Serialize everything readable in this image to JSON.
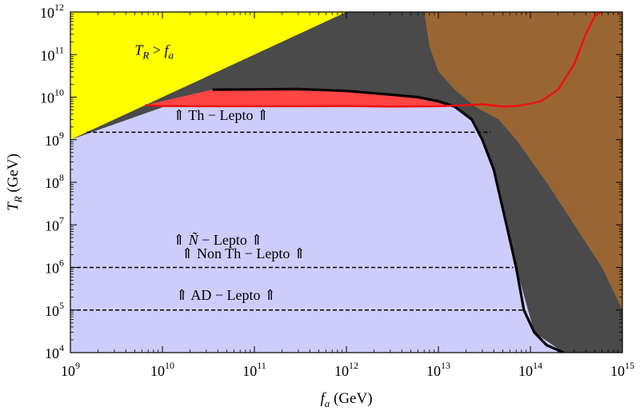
{
  "chart_data": {
    "type": "area",
    "x_scale": "log",
    "y_scale": "log",
    "xlim": [
      1000000000.0,
      1000000000000000.0
    ],
    "ylim": [
      10000.0,
      1000000000000.0
    ],
    "xlabel": {
      "italic": "f",
      "sub": "a",
      "unit": " (GeV)"
    },
    "ylabel": {
      "italic": "T",
      "sub": "R",
      "unit": " (GeV)"
    },
    "xticks": [
      {
        "value": 1000000000.0,
        "base": "10",
        "exp": "9"
      },
      {
        "value": 10000000000.0,
        "base": "10",
        "exp": "10"
      },
      {
        "value": 100000000000.0,
        "base": "10",
        "exp": "11"
      },
      {
        "value": 1000000000000.0,
        "base": "10",
        "exp": "12"
      },
      {
        "value": 10000000000000.0,
        "base": "10",
        "exp": "13"
      },
      {
        "value": 100000000000000.0,
        "base": "10",
        "exp": "14"
      },
      {
        "value": 1000000000000000.0,
        "base": "10",
        "exp": "15"
      }
    ],
    "yticks": [
      {
        "value": 10000.0,
        "base": "10",
        "exp": "4"
      },
      {
        "value": 100000.0,
        "base": "10",
        "exp": "5"
      },
      {
        "value": 1000000.0,
        "base": "10",
        "exp": "6"
      },
      {
        "value": 10000000.0,
        "base": "10",
        "exp": "7"
      },
      {
        "value": 100000000.0,
        "base": "10",
        "exp": "8"
      },
      {
        "value": 1000000000.0,
        "base": "10",
        "exp": "9"
      },
      {
        "value": 10000000000.0,
        "base": "10",
        "exp": "10"
      },
      {
        "value": 100000000000.0,
        "base": "10",
        "exp": "11"
      },
      {
        "value": 1000000000000.0,
        "base": "10",
        "exp": "12"
      }
    ],
    "colors": {
      "background": "#cdcdfb",
      "dark_region": "#4a4a4a",
      "yellow_region": "#ffff00",
      "brown_region": "#996633",
      "red_region": "#ff4444",
      "red_line": "#ee1111",
      "black_line": "#000000"
    },
    "regions": {
      "dark": {
        "name": "",
        "points": [
          [
            1000000000.0,
            1000000000000.0
          ],
          [
            1000000000000000.0,
            1000000000000.0
          ],
          [
            1000000000000000.0,
            10000.0
          ],
          [
            230000000000000.0,
            10000.0
          ],
          [
            110000000000000.0,
            30000.0
          ],
          [
            70000000000000.0,
            1000000.0
          ],
          [
            55000000000000.0,
            10000000.0
          ],
          [
            40000000000000.0,
            200000000.0
          ],
          [
            30000000000000.0,
            1000000000.0
          ],
          [
            23000000000000.0,
            3000000000.0
          ],
          [
            15000000000000.0,
            6000000000.0
          ],
          [
            6000000000000.0,
            10000000000.0
          ],
          [
            1000000000000.0,
            13500000000.0
          ],
          [
            35000000000.0,
            15000000000.0
          ],
          [
            1000000000.0,
            1000000000.0
          ]
        ]
      },
      "brown": {
        "name": "",
        "points": [
          [
            7000000000000.0,
            1000000000000.0
          ],
          [
            1000000000000000.0,
            1000000000000.0
          ],
          [
            1000000000000000.0,
            100000.0
          ],
          [
            600000000000000.0,
            1000000.0
          ],
          [
            300000000000000.0,
            10000000.0
          ],
          [
            150000000000000.0,
            100000000.0
          ],
          [
            70000000000000.0,
            1000000000.0
          ],
          [
            45000000000000.0,
            3000000000.0
          ],
          [
            25000000000000.0,
            6000000000.0
          ],
          [
            15000000000000.0,
            15000000000.0
          ],
          [
            10000000000000.0,
            40000000000.0
          ],
          [
            8000000000000.0,
            150000000000.0
          ],
          [
            7000000000000.0,
            1000000000000.0
          ]
        ]
      },
      "yellow": {
        "name": "",
        "points": [
          [
            1000000000.0,
            1000000000.0
          ],
          [
            1000000000000.0,
            1000000000000.0
          ],
          [
            1000000000.0,
            1000000000000.0
          ]
        ]
      },
      "red": {
        "name": "",
        "points": [
          [
            6500000000.0,
            6500000000.0
          ],
          [
            35000000000.0,
            15000000000.0
          ],
          [
            100000000000.0,
            15200000000.0
          ],
          [
            1000000000000.0,
            13500000000.0
          ],
          [
            6000000000000.0,
            10000000000.0
          ],
          [
            15000000000000.0,
            6000000000.0
          ],
          [
            10000000000000.0,
            6200000000.0
          ],
          [
            3000000000000.0,
            6000000000.0
          ],
          [
            1000000000000.0,
            6200000000.0
          ],
          [
            100000000000.0,
            6100000000.0
          ],
          [
            10000000000.0,
            6200000000.0
          ],
          [
            6500000000.0,
            6500000000.0
          ]
        ]
      }
    },
    "series": [
      {
        "name": "",
        "kind": "black_boundary",
        "points": [
          [
            35000000000.0,
            15000000000.0
          ],
          [
            100000000000.0,
            15200000000.0
          ],
          [
            300000000000.0,
            15500000000.0
          ],
          [
            1000000000000.0,
            14000000000.0
          ],
          [
            3000000000000.0,
            11500000000.0
          ],
          [
            6000000000000.0,
            10000000000.0
          ],
          [
            10000000000000.0,
            8000000000.0
          ],
          [
            15000000000000.0,
            6000000000.0
          ],
          [
            23000000000000.0,
            3000000000.0
          ],
          [
            30000000000000.0,
            1000000000.0
          ],
          [
            40000000000000.0,
            200000000.0
          ],
          [
            55000000000000.0,
            10000000.0
          ],
          [
            70000000000000.0,
            1000000.0
          ],
          [
            85000000000000.0,
            100000.0
          ],
          [
            110000000000000.0,
            30000.0
          ],
          [
            150000000000000.0,
            15000.0
          ],
          [
            230000000000000.0,
            10000.0
          ]
        ]
      },
      {
        "name": "",
        "kind": "red_line",
        "points": [
          [
            6500000000.0,
            6500000000.0
          ],
          [
            10000000000.0,
            6200000000.0
          ],
          [
            30000000000.0,
            6100000000.0
          ],
          [
            100000000000.0,
            6100000000.0
          ],
          [
            300000000000.0,
            6100000000.0
          ],
          [
            1000000000000.0,
            6200000000.0
          ],
          [
            3000000000000.0,
            6000000000.0
          ],
          [
            10000000000000.0,
            6100000000.0
          ],
          [
            20000000000000.0,
            6500000000.0
          ],
          [
            30000000000000.0,
            6800000000.0
          ],
          [
            50000000000000.0,
            6000000000.0
          ],
          [
            70000000000000.0,
            6200000000.0
          ],
          [
            100000000000000.0,
            7000000000.0
          ],
          [
            130000000000000.0,
            8000000000.0
          ],
          [
            200000000000000.0,
            15000000000.0
          ],
          [
            300000000000000.0,
            60000000000.0
          ],
          [
            400000000000000.0,
            300000000000.0
          ],
          [
            500000000000000.0,
            800000000000.0
          ],
          [
            600000000000000.0,
            1050000000000.0
          ]
        ]
      }
    ],
    "dashed_lines": [
      {
        "y": 1500000000.0,
        "x_from": 1500000000.0,
        "x_to": 37000000000000.0
      },
      {
        "y": 1000000.0,
        "x_from": 1000000000.0,
        "x_to": 65000000000000.0
      },
      {
        "y": 100000.0,
        "x_from": 1000000000.0,
        "x_to": 83000000000000.0
      }
    ],
    "annotations": [
      {
        "id": "yellow-label",
        "text": "T_R > f_a",
        "parts": {
          "t": "T",
          "sub_r": "R",
          "rel": " > ",
          "f": "f",
          "sub_a": "a"
        },
        "x": 5000000000.0,
        "y": 100000000000.0
      },
      {
        "id": "th-lepto",
        "text": "⇑ Th − Lepto ⇑",
        "x": 13000000000.0,
        "y": 2900000000.0
      },
      {
        "id": "ntilde-lepto",
        "text": "⇑ Ñ − Lepto ⇑",
        "parts": {
          "arrow_l": "⇑ ",
          "n": "Ñ",
          "rest": " − Lepto ⇑"
        },
        "x": 13000000000.0,
        "y": 3400000.0
      },
      {
        "id": "nonth-lepto",
        "text": "⇑ Non Th − Lepto ⇑",
        "x": 16000000000.0,
        "y": 1650000.0
      },
      {
        "id": "ad-lepto",
        "text": "⇑ AD − Lepto ⇑",
        "x": 14000000000.0,
        "y": 175000.0
      }
    ]
  }
}
